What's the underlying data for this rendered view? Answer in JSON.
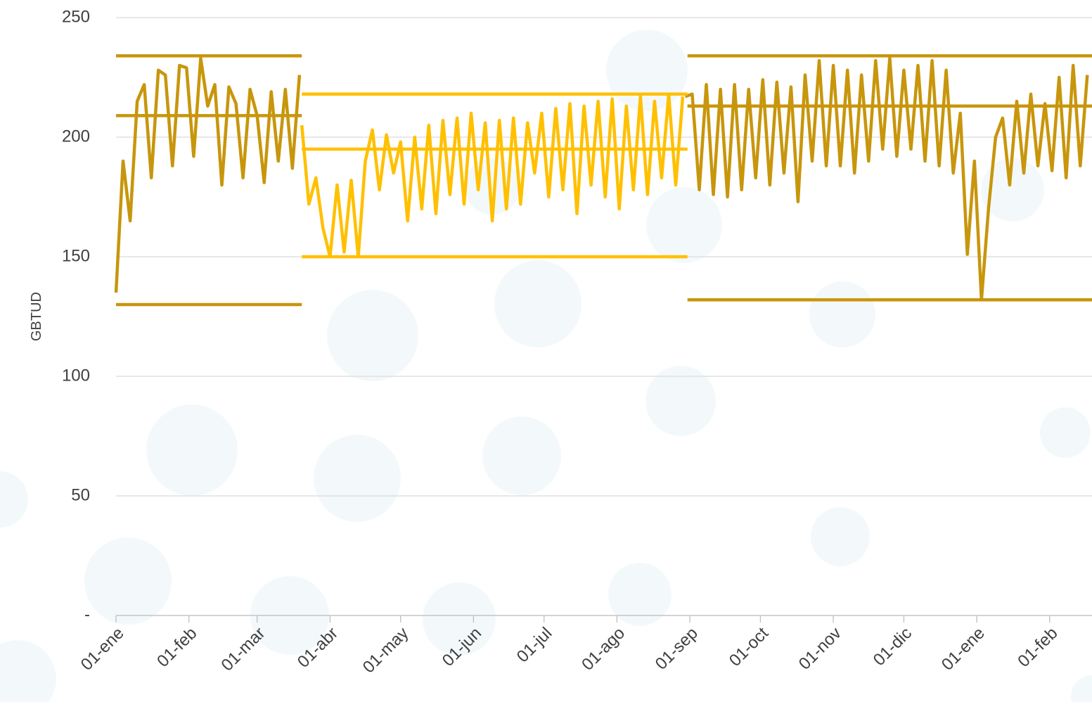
{
  "chart_data": {
    "type": "line",
    "ylabel": "GBTUD",
    "grid": true,
    "xlim": [
      0,
      415
    ],
    "ylim": [
      0,
      250
    ],
    "xticks": [
      {
        "value": 0,
        "label": "01-ene"
      },
      {
        "value": 31,
        "label": "01-feb"
      },
      {
        "value": 60,
        "label": "01-mar"
      },
      {
        "value": 91,
        "label": "01-abr"
      },
      {
        "value": 121,
        "label": "01-may"
      },
      {
        "value": 152,
        "label": "01-jun"
      },
      {
        "value": 182,
        "label": "01-jul"
      },
      {
        "value": 213,
        "label": "01-ago"
      },
      {
        "value": 244,
        "label": "01-sep"
      },
      {
        "value": 274,
        "label": "01-oct"
      },
      {
        "value": 305,
        "label": "01-nov"
      },
      {
        "value": 335,
        "label": "01-dic"
      },
      {
        "value": 366,
        "label": "01-ene"
      },
      {
        "value": 397,
        "label": "01-feb"
      }
    ],
    "yticks": [
      {
        "value": 0,
        "label": "-"
      },
      50,
      100,
      150,
      200,
      250
    ],
    "series": [
      {
        "color": "#C8960C",
        "x": [
          0,
          3,
          6,
          9,
          12,
          15,
          18,
          21,
          24,
          27,
          30,
          33,
          36,
          39,
          42,
          45,
          48,
          51,
          54,
          57,
          60,
          63,
          66,
          69,
          72,
          75,
          78
        ],
        "values": [
          135,
          190,
          165,
          215,
          222,
          183,
          228,
          226,
          188,
          230,
          229,
          192,
          233,
          213,
          222,
          180,
          221,
          214,
          183,
          220,
          209,
          181,
          219,
          190,
          220,
          187,
          226
        ]
      },
      {
        "color": "#FFC000",
        "x": [
          79,
          82,
          85,
          88,
          91,
          94,
          97,
          100,
          103,
          106,
          109,
          112,
          115,
          118,
          121,
          124,
          127,
          130,
          133,
          136,
          139,
          142,
          145,
          148,
          151,
          154,
          157,
          160,
          163,
          166,
          169,
          172,
          175,
          178,
          181,
          184,
          187,
          190,
          193,
          196,
          199,
          202,
          205,
          208,
          211,
          214,
          217,
          220,
          223,
          226,
          229,
          232,
          235,
          238,
          241
        ],
        "values": [
          205,
          172,
          183,
          162,
          150,
          180,
          152,
          182,
          150,
          190,
          203,
          178,
          201,
          185,
          198,
          165,
          200,
          170,
          205,
          168,
          207,
          176,
          208,
          172,
          210,
          178,
          206,
          165,
          207,
          170,
          208,
          172,
          206,
          185,
          210,
          175,
          212,
          178,
          214,
          168,
          213,
          180,
          215,
          175,
          216,
          170,
          213,
          178,
          217,
          176,
          215,
          183,
          218,
          180,
          217
        ]
      },
      {
        "color": "#C8960C",
        "x": [
          242,
          245,
          248,
          251,
          254,
          257,
          260,
          263,
          266,
          269,
          272,
          275,
          278,
          281,
          284,
          287,
          290,
          293,
          296,
          299,
          302,
          305,
          308,
          311,
          314,
          317,
          320,
          323,
          326,
          329,
          332,
          335,
          338,
          341,
          344,
          347,
          350,
          353,
          356,
          359,
          362,
          365,
          368,
          371,
          374,
          377,
          380,
          383,
          386,
          389,
          392,
          395,
          398,
          401,
          404,
          407,
          410,
          413
        ],
        "values": [
          217,
          218,
          178,
          222,
          176,
          220,
          175,
          222,
          178,
          220,
          183,
          224,
          180,
          223,
          185,
          221,
          173,
          226,
          190,
          232,
          188,
          230,
          188,
          228,
          185,
          226,
          190,
          232,
          195,
          233,
          192,
          228,
          195,
          230,
          190,
          232,
          188,
          228,
          185,
          210,
          151,
          190,
          132,
          170,
          200,
          208,
          180,
          215,
          185,
          218,
          188,
          214,
          186,
          225,
          183,
          230,
          188,
          226
        ]
      },
      {
        "color": "#C8960C",
        "x": [
          0,
          79
        ],
        "values": [
          234,
          234
        ]
      },
      {
        "color": "#C8960C",
        "x": [
          0,
          79
        ],
        "values": [
          209,
          209
        ]
      },
      {
        "color": "#C8960C",
        "x": [
          0,
          79
        ],
        "values": [
          130,
          130
        ]
      },
      {
        "color": "#FFC000",
        "x": [
          79,
          243
        ],
        "values": [
          218,
          218
        ]
      },
      {
        "color": "#FFC000",
        "x": [
          79,
          243
        ],
        "values": [
          195,
          195
        ]
      },
      {
        "color": "#FFC000",
        "x": [
          79,
          243
        ],
        "values": [
          150,
          150
        ]
      },
      {
        "color": "#C8960C",
        "x": [
          243,
          415
        ],
        "values": [
          234,
          234
        ]
      },
      {
        "color": "#C8960C",
        "x": [
          243,
          415
        ],
        "values": [
          213,
          213
        ]
      },
      {
        "color": "#C8960C",
        "x": [
          243,
          415
        ],
        "values": [
          132,
          132
        ]
      }
    ]
  }
}
